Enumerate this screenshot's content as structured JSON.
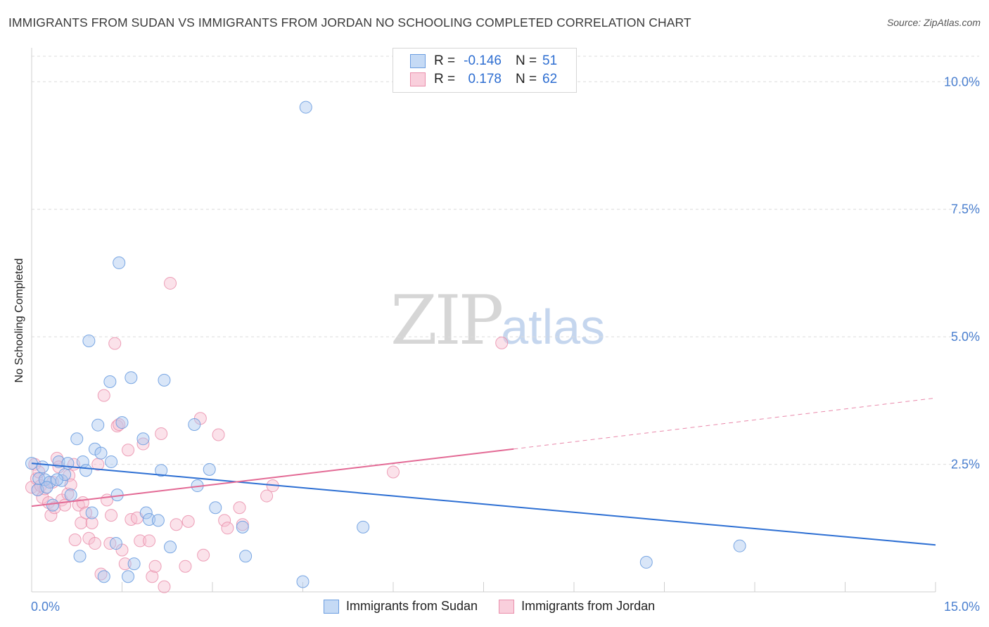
{
  "title": "IMMIGRANTS FROM SUDAN VS IMMIGRANTS FROM JORDAN NO SCHOOLING COMPLETED CORRELATION CHART",
  "source": "Source: ZipAtlas.com",
  "watermark": {
    "zip": "ZIP",
    "atlas": "atlas"
  },
  "legend": {
    "rows": [
      {
        "r_label": "R =",
        "r_value": "-0.146",
        "n_label": "N =",
        "n_value": "51"
      },
      {
        "r_label": "R =",
        "r_value": "0.178",
        "n_label": "N =",
        "n_value": "62"
      }
    ]
  },
  "colors": {
    "sudan_fill": "#aac8f0",
    "sudan_stroke": "#6b9de0",
    "sudan_line": "#2d6fd3",
    "jordan_fill": "#f7bfd0",
    "jordan_stroke": "#ea8fac",
    "jordan_line": "#e36a95",
    "grid": "#dcdcdc",
    "tick": "#4a7fcf"
  },
  "chart_data": {
    "type": "scatter",
    "title": "IMMIGRANTS FROM SUDAN VS IMMIGRANTS FROM JORDAN NO SCHOOLING COMPLETED CORRELATION CHART",
    "xlabel": "",
    "ylabel": "No Schooling Completed",
    "xlim": [
      0,
      15
    ],
    "ylim": [
      0,
      10.5
    ],
    "x_tick_labels": [
      "0.0%",
      "15.0%"
    ],
    "y_ticks": [
      2.5,
      5.0,
      7.5,
      10.0
    ],
    "y_tick_labels": [
      "2.5%",
      "5.0%",
      "7.5%",
      "10.0%"
    ],
    "grid": true,
    "legend_position": "top-center",
    "series": [
      {
        "name": "Immigrants from Sudan",
        "r": -0.146,
        "n": 51,
        "trend": {
          "x": [
            0,
            15
          ],
          "y": [
            2.52,
            0.92
          ]
        },
        "points": [
          [
            0.0,
            2.52
          ],
          [
            0.1,
            2.0
          ],
          [
            0.12,
            2.22
          ],
          [
            0.18,
            2.45
          ],
          [
            0.22,
            2.2
          ],
          [
            0.3,
            2.15
          ],
          [
            0.35,
            1.7
          ],
          [
            0.45,
            2.55
          ],
          [
            0.5,
            2.18
          ],
          [
            0.55,
            2.3
          ],
          [
            0.6,
            2.52
          ],
          [
            0.65,
            1.9
          ],
          [
            0.75,
            3.0
          ],
          [
            0.8,
            0.7
          ],
          [
            0.85,
            2.55
          ],
          [
            0.9,
            2.38
          ],
          [
            0.95,
            4.92
          ],
          [
            1.0,
            1.55
          ],
          [
            1.05,
            2.8
          ],
          [
            1.1,
            3.27
          ],
          [
            1.15,
            2.72
          ],
          [
            1.2,
            0.3
          ],
          [
            1.3,
            4.12
          ],
          [
            1.32,
            2.55
          ],
          [
            1.4,
            0.95
          ],
          [
            1.42,
            1.9
          ],
          [
            1.45,
            6.45
          ],
          [
            1.5,
            3.32
          ],
          [
            1.6,
            0.3
          ],
          [
            1.65,
            4.2
          ],
          [
            1.7,
            0.55
          ],
          [
            1.85,
            3.0
          ],
          [
            1.9,
            1.55
          ],
          [
            1.95,
            1.42
          ],
          [
            2.1,
            1.4
          ],
          [
            2.15,
            2.38
          ],
          [
            2.2,
            4.15
          ],
          [
            2.3,
            0.88
          ],
          [
            2.7,
            3.28
          ],
          [
            2.75,
            2.08
          ],
          [
            2.95,
            2.4
          ],
          [
            3.05,
            1.65
          ],
          [
            3.5,
            1.27
          ],
          [
            3.55,
            0.7
          ],
          [
            4.5,
            0.2
          ],
          [
            4.55,
            9.5
          ],
          [
            5.5,
            1.27
          ],
          [
            10.2,
            0.58
          ],
          [
            11.75,
            0.9
          ],
          [
            0.25,
            2.05
          ],
          [
            0.42,
            2.2
          ]
        ]
      },
      {
        "name": "Immigrants from Jordan",
        "r": 0.178,
        "n": 62,
        "trend": {
          "x": [
            0,
            8.0
          ],
          "y": [
            1.68,
            2.8
          ]
        },
        "trend_extension": {
          "x": [
            8.0,
            15
          ],
          "y": [
            2.8,
            3.8
          ]
        },
        "points": [
          [
            0.0,
            2.05
          ],
          [
            0.05,
            2.5
          ],
          [
            0.08,
            2.22
          ],
          [
            0.1,
            2.0
          ],
          [
            0.12,
            2.35
          ],
          [
            0.15,
            2.08
          ],
          [
            0.18,
            1.85
          ],
          [
            0.22,
            2.02
          ],
          [
            0.28,
            1.75
          ],
          [
            0.32,
            1.5
          ],
          [
            0.35,
            2.15
          ],
          [
            0.38,
            1.65
          ],
          [
            0.42,
            2.62
          ],
          [
            0.45,
            2.45
          ],
          [
            0.5,
            1.8
          ],
          [
            0.55,
            1.7
          ],
          [
            0.6,
            1.92
          ],
          [
            0.62,
            2.28
          ],
          [
            0.65,
            2.1
          ],
          [
            0.7,
            2.5
          ],
          [
            0.72,
            1.02
          ],
          [
            0.78,
            1.7
          ],
          [
            0.82,
            1.35
          ],
          [
            0.85,
            1.75
          ],
          [
            0.9,
            1.55
          ],
          [
            0.95,
            1.05
          ],
          [
            1.0,
            1.35
          ],
          [
            1.05,
            0.95
          ],
          [
            1.1,
            2.5
          ],
          [
            1.15,
            0.35
          ],
          [
            1.2,
            3.85
          ],
          [
            1.25,
            1.8
          ],
          [
            1.3,
            0.95
          ],
          [
            1.32,
            1.5
          ],
          [
            1.38,
            4.87
          ],
          [
            1.42,
            3.25
          ],
          [
            1.45,
            3.28
          ],
          [
            1.5,
            0.82
          ],
          [
            1.55,
            0.55
          ],
          [
            1.6,
            2.78
          ],
          [
            1.65,
            1.42
          ],
          [
            1.75,
            1.45
          ],
          [
            1.8,
            1.0
          ],
          [
            1.85,
            2.9
          ],
          [
            1.95,
            1.0
          ],
          [
            2.0,
            0.3
          ],
          [
            2.05,
            0.5
          ],
          [
            2.15,
            3.1
          ],
          [
            2.2,
            0.1
          ],
          [
            2.3,
            6.05
          ],
          [
            2.4,
            1.32
          ],
          [
            2.55,
            0.5
          ],
          [
            2.6,
            1.38
          ],
          [
            2.8,
            3.4
          ],
          [
            2.85,
            0.72
          ],
          [
            3.1,
            3.08
          ],
          [
            3.2,
            1.4
          ],
          [
            3.25,
            1.25
          ],
          [
            3.45,
            1.65
          ],
          [
            3.5,
            1.32
          ],
          [
            3.9,
            1.88
          ],
          [
            4.0,
            2.08
          ]
        ],
        "outliers": [
          [
            6.0,
            2.35
          ],
          [
            7.8,
            4.88
          ]
        ]
      }
    ]
  },
  "bottom_legend": {
    "sudan": "Immigrants from Sudan",
    "jordan": "Immigrants from Jordan"
  }
}
